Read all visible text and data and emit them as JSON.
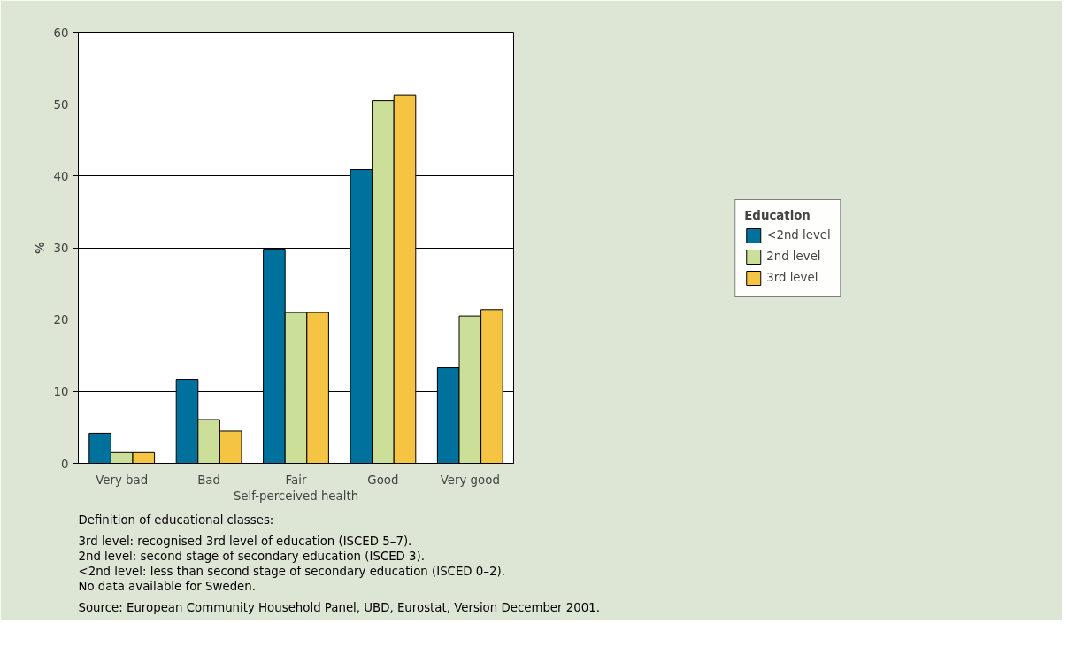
{
  "chart_data": {
    "type": "bar",
    "xlabel": "Self-perceived health",
    "ylabel": "%",
    "legend_title": "Education",
    "legend": "right",
    "grid": "y",
    "categories": [
      "Very bad",
      "Bad",
      "Fair",
      "Good",
      "Very good"
    ],
    "ylim": [
      0,
      60
    ],
    "yticks": [
      0,
      10,
      20,
      30,
      40,
      50,
      60
    ],
    "series": [
      {
        "name": "<2nd level",
        "color": "#00709c",
        "values": [
          4.2,
          11.7,
          29.8,
          40.9,
          13.3
        ]
      },
      {
        "name": "2nd level",
        "color": "#cbdf98",
        "values": [
          1.5,
          6.1,
          21.0,
          50.5,
          20.5
        ]
      },
      {
        "name": "3rd level",
        "color": "#f6c443",
        "values": [
          1.5,
          4.5,
          21.0,
          51.3,
          21.4
        ]
      }
    ],
    "annotations": [
      "Definition of educational classes:",
      "3rd level: recognised 3rd level of education (ISCED 5–7).",
      "2nd level: second stage of secondary education (ISCED 3).",
      "<2nd level: less than second stage of secondary education (ISCED 0–2).",
      "No data available for Sweden.",
      "Source: European Community Household Panel, UBD, Eurostat, Version December 2001."
    ]
  }
}
